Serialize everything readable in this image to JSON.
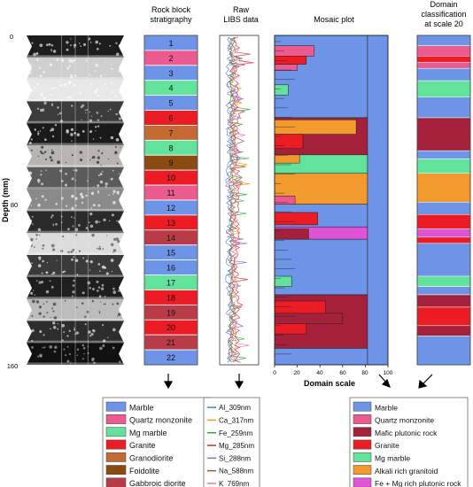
{
  "headers": {
    "stratigraphy": [
      "Rock block",
      "stratigraphy"
    ],
    "raw": [
      "Raw",
      "LIBS data"
    ],
    "mosaic": "Mosaic plot",
    "domain": [
      "Domain",
      "classification",
      "at scale 20"
    ]
  },
  "depth_axis": {
    "label": "Depth (mm)",
    "ticks": [
      "0",
      "80",
      "160"
    ]
  },
  "mosaic_axis": {
    "label": "Domain scale",
    "ticks": [
      "0",
      "20",
      "40",
      "60",
      "80",
      "100"
    ]
  },
  "strat_layers": [
    {
      "label": "1",
      "color": "#6d94e6"
    },
    {
      "label": "2",
      "color": "#ec5b8f"
    },
    {
      "label": "3",
      "color": "#6d94e6"
    },
    {
      "label": "4",
      "color": "#63e29c"
    },
    {
      "label": "5",
      "color": "#6d94e6"
    },
    {
      "label": "6",
      "color": "#ec1c24"
    },
    {
      "label": "7",
      "color": "#c46a32"
    },
    {
      "label": "8",
      "color": "#63e29c"
    },
    {
      "label": "9",
      "color": "#8b4a12"
    },
    {
      "label": "10",
      "color": "#ec1c24"
    },
    {
      "label": "11",
      "color": "#ec5b8f"
    },
    {
      "label": "12",
      "color": "#6d94e6"
    },
    {
      "label": "13",
      "color": "#ec1c24"
    },
    {
      "label": "14",
      "color": "#b83c48"
    },
    {
      "label": "15",
      "color": "#6d94e6"
    },
    {
      "label": "16",
      "color": "#6d94e6"
    },
    {
      "label": "17",
      "color": "#63e29c"
    },
    {
      "label": "18",
      "color": "#ec1c24"
    },
    {
      "label": "19",
      "color": "#b83c48"
    },
    {
      "label": "20",
      "color": "#ec1c24"
    },
    {
      "label": "21",
      "color": "#b83c48"
    },
    {
      "label": "22",
      "color": "#6d94e6"
    }
  ],
  "rock_legend": [
    {
      "label": "Marble",
      "color": "#6d94e6"
    },
    {
      "label": "Quartz monzonite",
      "color": "#ec5b8f"
    },
    {
      "label": "Mg marble",
      "color": "#63e29c"
    },
    {
      "label": "Granite",
      "color": "#ec1c24"
    },
    {
      "label": "Granodiorite",
      "color": "#c46a32"
    },
    {
      "label": "Foidolite",
      "color": "#8b4a12"
    },
    {
      "label": "Gabbroic diorite",
      "color": "#b83c48"
    }
  ],
  "libs_legend": [
    {
      "label": "Al_309nm",
      "color": "#3b86d6"
    },
    {
      "label": "Ca_317nm",
      "color": "#f29a1f"
    },
    {
      "label": "Fe_259nm",
      "color": "#2fa84a"
    },
    {
      "label": "Mg_285nm",
      "color": "#d62a2a"
    },
    {
      "label": "Si_288nm",
      "color": "#9a66c8"
    },
    {
      "label": "Na_588nm",
      "color": "#8c5a3c"
    },
    {
      "label": "K_769nm",
      "color": "#e57ac0"
    }
  ],
  "domain_legend": [
    {
      "label": "Marble",
      "color": "#6d94e6"
    },
    {
      "label": "Quartz monzonite",
      "color": "#ec5b8f"
    },
    {
      "label": "Mafic plutonic rock",
      "color": "#a5203a"
    },
    {
      "label": "Granite",
      "color": "#ec1c24"
    },
    {
      "label": "Mg marble",
      "color": "#63e29c"
    },
    {
      "label": "Alkali rich granitoid",
      "color": "#f39a2e"
    },
    {
      "label": "Fe + Mg rich plutonic rock",
      "color": "#df54d6"
    }
  ],
  "domain_bands": [
    {
      "color": "#6d94e6",
      "depth_from": 0,
      "depth_to": 5
    },
    {
      "color": "#ec5b8f",
      "depth_from": 5,
      "depth_to": 10
    },
    {
      "color": "#ec1c24",
      "depth_from": 10,
      "depth_to": 13
    },
    {
      "color": "#ec5b8f",
      "depth_from": 13,
      "depth_to": 16
    },
    {
      "color": "#6d94e6",
      "depth_from": 16,
      "depth_to": 22
    },
    {
      "color": "#63e29c",
      "depth_from": 22,
      "depth_to": 30
    },
    {
      "color": "#6d94e6",
      "depth_from": 30,
      "depth_to": 40
    },
    {
      "color": "#a5203a",
      "depth_from": 40,
      "depth_to": 56
    },
    {
      "color": "#6d94e6",
      "depth_from": 56,
      "depth_to": 60
    },
    {
      "color": "#63e29c",
      "depth_from": 60,
      "depth_to": 67
    },
    {
      "color": "#f39a2e",
      "depth_from": 67,
      "depth_to": 81
    },
    {
      "color": "#6d94e6",
      "depth_from": 81,
      "depth_to": 87
    },
    {
      "color": "#ec1c24",
      "depth_from": 87,
      "depth_to": 94
    },
    {
      "color": "#df54d6",
      "depth_from": 94,
      "depth_to": 98
    },
    {
      "color": "#ec1c24",
      "depth_from": 98,
      "depth_to": 101
    },
    {
      "color": "#6d94e6",
      "depth_from": 101,
      "depth_to": 117
    },
    {
      "color": "#63e29c",
      "depth_from": 117,
      "depth_to": 122
    },
    {
      "color": "#6d94e6",
      "depth_from": 122,
      "depth_to": 126
    },
    {
      "color": "#a5203a",
      "depth_from": 126,
      "depth_to": 132
    },
    {
      "color": "#ec1c24",
      "depth_from": 132,
      "depth_to": 141
    },
    {
      "color": "#a5203a",
      "depth_from": 141,
      "depth_to": 146
    },
    {
      "color": "#6d94e6",
      "depth_from": 146,
      "depth_to": 160
    }
  ],
  "mosaic_columns": [
    {
      "from_scale": 0,
      "to_scale": 82,
      "segments": [
        {
          "color": "#6d94e6",
          "depth_from": 0,
          "depth_to": 40
        },
        {
          "color": "#a5203a",
          "depth_from": 40,
          "depth_to": 58
        },
        {
          "color": "#63e29c",
          "depth_from": 58,
          "depth_to": 67
        },
        {
          "color": "#f39a2e",
          "depth_from": 67,
          "depth_to": 82
        },
        {
          "color": "#6d94e6",
          "depth_from": 82,
          "depth_to": 93
        },
        {
          "color": "#df54d6",
          "depth_from": 93,
          "depth_to": 99
        },
        {
          "color": "#6d94e6",
          "depth_from": 99,
          "depth_to": 126
        },
        {
          "color": "#a5203a",
          "depth_from": 126,
          "depth_to": 152
        },
        {
          "color": "#6d94e6",
          "depth_from": 152,
          "depth_to": 160
        }
      ]
    },
    {
      "from_scale": 82,
      "to_scale": 100,
      "segments": [
        {
          "color": "#6d94e6",
          "depth_from": 0,
          "depth_to": 160
        }
      ]
    }
  ],
  "mosaic_detail": [
    {
      "color": "#ec5b8f",
      "from_scale": 0,
      "to_scale": 35,
      "depth_from": 5,
      "depth_to": 10
    },
    {
      "color": "#ec1c24",
      "from_scale": 0,
      "to_scale": 28,
      "depth_from": 10,
      "depth_to": 14
    },
    {
      "color": "#ec5b8f",
      "from_scale": 0,
      "to_scale": 20,
      "depth_from": 14,
      "depth_to": 17
    },
    {
      "color": "#63e29c",
      "from_scale": 0,
      "to_scale": 12,
      "depth_from": 24,
      "depth_to": 29
    },
    {
      "color": "#f39a2e",
      "from_scale": 0,
      "to_scale": 72,
      "depth_from": 41,
      "depth_to": 48
    },
    {
      "color": "#ec1c24",
      "from_scale": 0,
      "to_scale": 25,
      "depth_from": 48,
      "depth_to": 55
    },
    {
      "color": "#f39a2e",
      "from_scale": 0,
      "to_scale": 22,
      "depth_from": 58,
      "depth_to": 62
    },
    {
      "color": "#ec5b8f",
      "from_scale": 0,
      "to_scale": 18,
      "depth_from": 78,
      "depth_to": 82
    },
    {
      "color": "#ec1c24",
      "from_scale": 0,
      "to_scale": 38,
      "depth_from": 86,
      "depth_to": 92
    },
    {
      "color": "#a5203a",
      "from_scale": 0,
      "to_scale": 30,
      "depth_from": 94,
      "depth_to": 99
    },
    {
      "color": "#63e29c",
      "from_scale": 0,
      "to_scale": 15,
      "depth_from": 117,
      "depth_to": 122
    },
    {
      "color": "#ec1c24",
      "from_scale": 0,
      "to_scale": 45,
      "depth_from": 129,
      "depth_to": 136
    },
    {
      "color": "#ec1c24",
      "from_scale": 0,
      "to_scale": 28,
      "depth_from": 138,
      "depth_to": 145
    },
    {
      "color": "#a5203a",
      "from_scale": 0,
      "to_scale": 60,
      "depth_from": 135,
      "depth_to": 140
    }
  ],
  "rock_core_blocks": [
    {
      "tone": "#1d1d1d",
      "speck": "#d9d9d9"
    },
    {
      "tone": "#cfcfcf",
      "speck": "#f5f5f5"
    },
    {
      "tone": "#e8e8e8",
      "speck": "#ffffff"
    },
    {
      "tone": "#3c3c3c",
      "speck": "#c8c8c8"
    },
    {
      "tone": "#1a1a1a",
      "speck": "#e0e0e0"
    },
    {
      "tone": "#b9b4b1",
      "speck": "#2a2a2a"
    },
    {
      "tone": "#5b5b5b",
      "speck": "#dddddd"
    },
    {
      "tone": "#8a8a8a",
      "speck": "#f0f0f0"
    },
    {
      "tone": "#2a2a2a",
      "speck": "#cfcfcf"
    },
    {
      "tone": "#dcdcdc",
      "speck": "#5a5a5a"
    },
    {
      "tone": "#3a3a3a",
      "speck": "#e8e8e8"
    },
    {
      "tone": "#1e1e1e",
      "speck": "#bdbdbd"
    },
    {
      "tone": "#bcbcbc",
      "speck": "#3a3a3a"
    },
    {
      "tone": "#2d2d2d",
      "speck": "#dadada"
    },
    {
      "tone": "#111111",
      "speck": "#a0a0a0"
    }
  ],
  "chart_data": {
    "type": "heatmap",
    "title": "Mosaic plot",
    "xlabel": "Domain scale",
    "ylabel": "Depth (mm)",
    "xlim": [
      0,
      100
    ],
    "ylim": [
      0,
      160
    ]
  }
}
